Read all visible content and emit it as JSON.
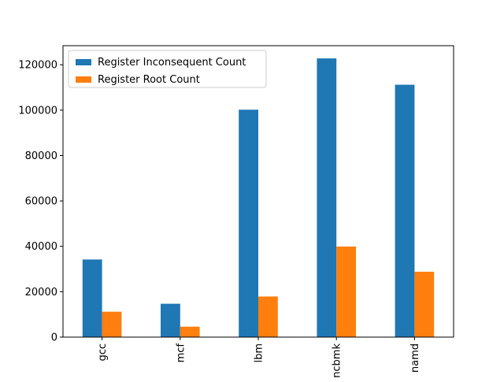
{
  "chart_data": {
    "type": "bar",
    "categories": [
      "gcc",
      "mcf",
      "lbm",
      "xalancbmk",
      "namd"
    ],
    "series": [
      {
        "name": "Register Inconsequent Count",
        "color": "#1f77b4",
        "values": [
          34200,
          14700,
          100200,
          122800,
          111200
        ]
      },
      {
        "name": "Register Root Count",
        "color": "#ff7f0e",
        "values": [
          11200,
          4600,
          17900,
          39900,
          28800
        ]
      }
    ],
    "yticks": [
      0,
      20000,
      40000,
      60000,
      80000,
      100000,
      120000
    ],
    "ylim": [
      0,
      128400
    ],
    "xlabel": "",
    "ylabel": "",
    "title": "",
    "legend_position": "top-left",
    "grid": false
  }
}
